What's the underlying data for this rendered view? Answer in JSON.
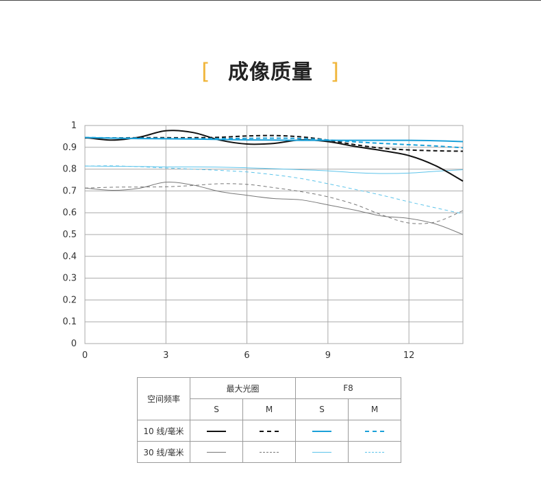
{
  "header": {
    "title": "成像质量",
    "bracket_left": "[",
    "bracket_right": "]"
  },
  "chart_data": {
    "type": "line",
    "title": "",
    "xlabel": "",
    "ylabel": "",
    "xlim": [
      0,
      14
    ],
    "ylim": [
      0,
      1
    ],
    "x_ticks": [
      0,
      3,
      6,
      9,
      12
    ],
    "y_ticks": [
      0,
      0.1,
      0.2,
      0.3,
      0.4,
      0.5,
      0.6,
      0.7,
      0.8,
      0.9,
      1
    ],
    "y_tick_labels": [
      "0",
      "0.1",
      "0.2",
      "0.3",
      "0.4",
      "0.5",
      "0.6",
      "0.7",
      "0.8",
      "0.9",
      "1"
    ],
    "grid": true,
    "series": [
      {
        "color": "#111111",
        "dash": false,
        "width": 2.0,
        "x": [
          0,
          1,
          2,
          3,
          4,
          5,
          6,
          7,
          8,
          9,
          10,
          11,
          12,
          13,
          14
        ],
        "y": [
          0.945,
          0.933,
          0.946,
          0.976,
          0.968,
          0.933,
          0.915,
          0.918,
          0.934,
          0.926,
          0.904,
          0.885,
          0.862,
          0.815,
          0.745
        ]
      },
      {
        "color": "#111111",
        "dash": true,
        "width": 2.0,
        "x": [
          0,
          1,
          2,
          3,
          4,
          5,
          6,
          7,
          8,
          9,
          10,
          11,
          12,
          13,
          14
        ],
        "y": [
          0.943,
          0.943,
          0.944,
          0.944,
          0.944,
          0.946,
          0.952,
          0.954,
          0.948,
          0.933,
          0.912,
          0.896,
          0.888,
          0.884,
          0.882
        ]
      },
      {
        "color": "#1aa0d8",
        "dash": false,
        "width": 2.0,
        "x": [
          0,
          1,
          2,
          3,
          4,
          5,
          6,
          7,
          8,
          9,
          10,
          11,
          12,
          13,
          14
        ],
        "y": [
          0.945,
          0.942,
          0.94,
          0.939,
          0.938,
          0.936,
          0.934,
          0.933,
          0.932,
          0.932,
          0.932,
          0.932,
          0.932,
          0.93,
          0.926
        ]
      },
      {
        "color": "#1aa0d8",
        "dash": true,
        "width": 2.0,
        "x": [
          0,
          1,
          2,
          3,
          4,
          5,
          6,
          7,
          8,
          9,
          10,
          11,
          12,
          13,
          14
        ],
        "y": [
          0.945,
          0.943,
          0.942,
          0.941,
          0.94,
          0.94,
          0.941,
          0.942,
          0.94,
          0.934,
          0.925,
          0.918,
          0.912,
          0.906,
          0.898
        ]
      },
      {
        "color": "#777777",
        "dash": false,
        "width": 1.0,
        "x": [
          0,
          1,
          2,
          3,
          4,
          5,
          6,
          7,
          8,
          9,
          10,
          11,
          12,
          13,
          14
        ],
        "y": [
          0.713,
          0.703,
          0.712,
          0.74,
          0.727,
          0.697,
          0.68,
          0.665,
          0.659,
          0.636,
          0.612,
          0.585,
          0.574,
          0.548,
          0.5
        ]
      },
      {
        "color": "#777777",
        "dash": true,
        "width": 1.0,
        "x": [
          0,
          1,
          2,
          3,
          4,
          5,
          6,
          7,
          8,
          9,
          10,
          11,
          12,
          13,
          14
        ],
        "y": [
          0.713,
          0.717,
          0.718,
          0.719,
          0.725,
          0.733,
          0.73,
          0.715,
          0.697,
          0.673,
          0.638,
          0.59,
          0.553,
          0.558,
          0.61
        ]
      },
      {
        "color": "#5bc3ea",
        "dash": false,
        "width": 1.0,
        "x": [
          0,
          1,
          2,
          3,
          4,
          5,
          6,
          7,
          8,
          9,
          10,
          11,
          12,
          13,
          14
        ],
        "y": [
          0.814,
          0.813,
          0.812,
          0.81,
          0.81,
          0.809,
          0.806,
          0.802,
          0.797,
          0.792,
          0.784,
          0.78,
          0.782,
          0.79,
          0.797
        ]
      },
      {
        "color": "#5bc3ea",
        "dash": true,
        "width": 1.0,
        "x": [
          0,
          1,
          2,
          3,
          4,
          5,
          6,
          7,
          8,
          9,
          10,
          11,
          12,
          13,
          14
        ],
        "y": [
          0.814,
          0.815,
          0.811,
          0.805,
          0.8,
          0.794,
          0.787,
          0.774,
          0.757,
          0.733,
          0.707,
          0.68,
          0.65,
          0.622,
          0.595
        ]
      }
    ]
  },
  "legend": {
    "row_header": "空间频率",
    "group1": "最大光圈",
    "group2": "F8",
    "s_label": "S",
    "m_label": "M",
    "row1_label": "10 线/毫米",
    "row2_label": "30 线/毫米"
  },
  "legend_styles": {
    "row1": [
      {
        "color": "#111111",
        "dash": false,
        "width": 2
      },
      {
        "color": "#111111",
        "dash": true,
        "width": 2
      },
      {
        "color": "#1aa0d8",
        "dash": false,
        "width": 2
      },
      {
        "color": "#1aa0d8",
        "dash": true,
        "width": 2
      }
    ],
    "row2": [
      {
        "color": "#777777",
        "dash": false,
        "width": 1
      },
      {
        "color": "#777777",
        "dash": true,
        "width": 1
      },
      {
        "color": "#5bc3ea",
        "dash": false,
        "width": 1
      },
      {
        "color": "#5bc3ea",
        "dash": true,
        "width": 1
      }
    ]
  },
  "colors": {
    "accent": "#f0b63c",
    "grid": "#a9a9a9"
  }
}
